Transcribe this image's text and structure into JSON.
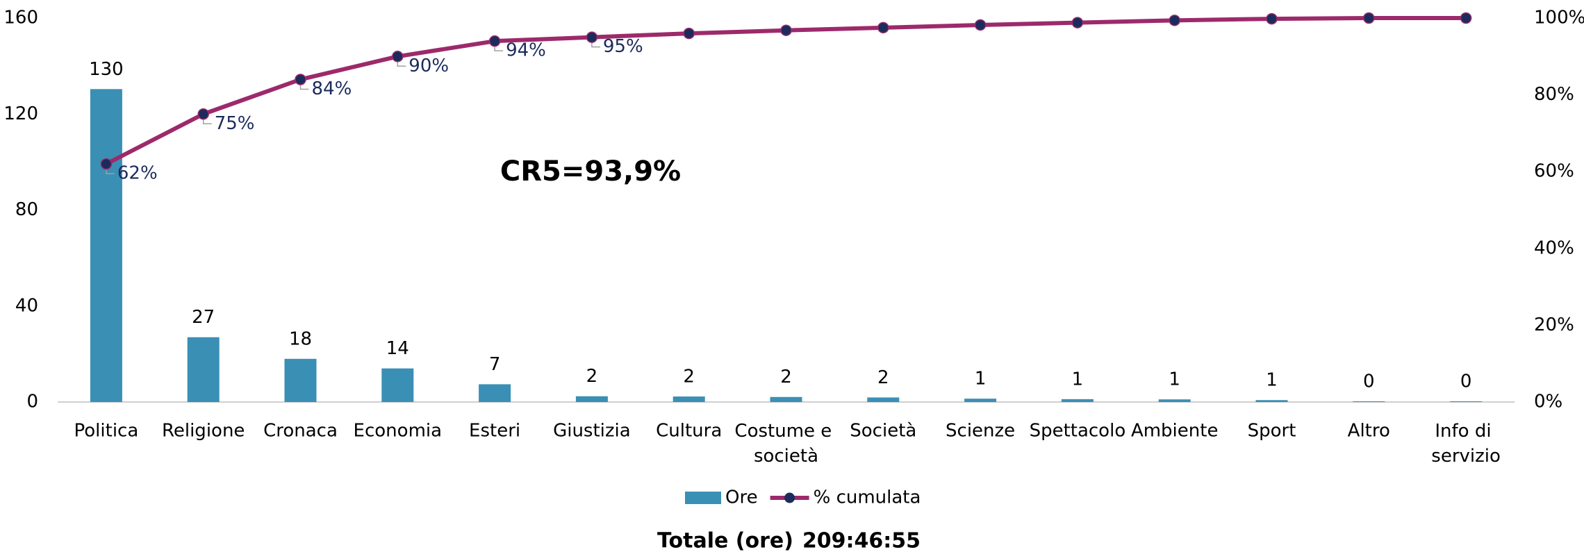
{
  "chart_data": {
    "type": "pareto",
    "annotation": "CR5=93,9%",
    "footer_label": "Totale (ore)",
    "footer_value": "209:46:55",
    "categories": [
      "Politica",
      "Religione",
      "Cronaca",
      "Economia",
      "Esteri",
      "Giustizia",
      "Cultura",
      "Costume e società",
      "Società",
      "Scienze",
      "Spettacolo",
      "Ambiente",
      "Sport",
      "Altro",
      "Info di servizio"
    ],
    "series": [
      {
        "name": "Ore",
        "type": "bar",
        "color": "#3a8fb5",
        "values": [
          130.4,
          27,
          18,
          14,
          7.4,
          2.4,
          2.3,
          2.1,
          1.9,
          1.4,
          1.2,
          1.1,
          0.8,
          0.3,
          0.3
        ],
        "value_labels": [
          "130",
          "27",
          "18",
          "14",
          "7",
          "2",
          "2",
          "2",
          "2",
          "1",
          "1",
          "1",
          "1",
          "0",
          "0"
        ]
      },
      {
        "name": "% cumulata",
        "type": "line",
        "axis": "y2",
        "color": "#9c2a6b",
        "marker_color": "#1b2b5c",
        "values": [
          62,
          75,
          84,
          90,
          94,
          95,
          96,
          96.8,
          97.5,
          98.2,
          98.8,
          99.4,
          99.8,
          100,
          100
        ],
        "value_labels": [
          "62%",
          "75%",
          "84%",
          "90%",
          "94%",
          "95%",
          null,
          null,
          null,
          null,
          null,
          null,
          null,
          null,
          null
        ]
      }
    ],
    "ylim": [
      0,
      160
    ],
    "yticks": [
      0,
      40,
      80,
      120,
      160
    ],
    "y2lim": [
      0,
      100
    ],
    "y2ticks": [
      {
        "value": 0,
        "label": "0%"
      },
      {
        "value": 20,
        "label": "20%"
      },
      {
        "value": 40,
        "label": "40%"
      },
      {
        "value": 60,
        "label": "60%"
      },
      {
        "value": 80,
        "label": "80%"
      },
      {
        "value": 100,
        "label": "100%"
      }
    ],
    "grid": false,
    "legend": "bottom"
  }
}
